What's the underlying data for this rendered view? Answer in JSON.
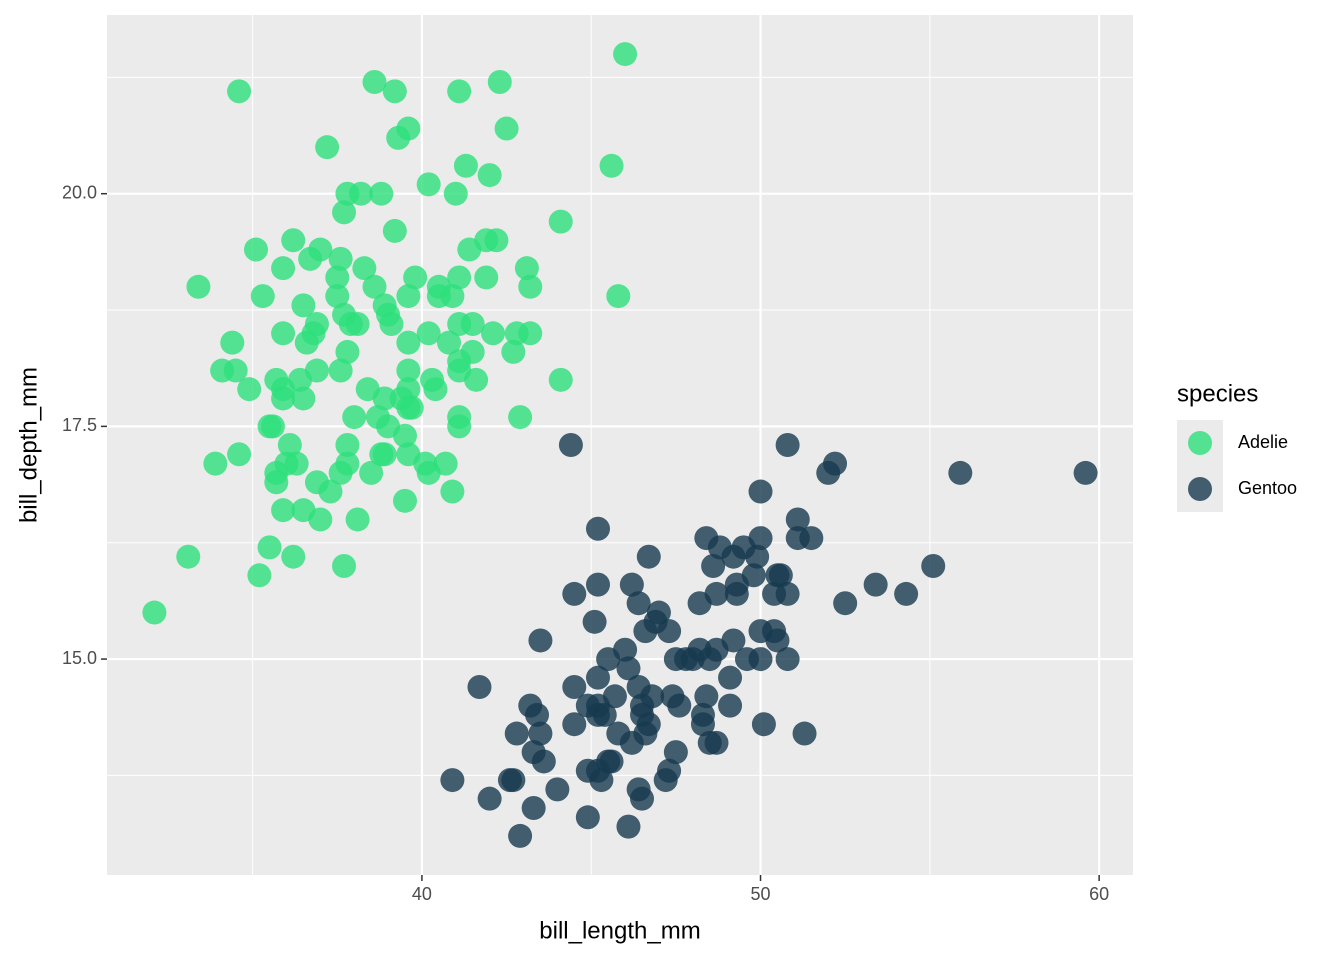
{
  "chart_data": {
    "type": "scatter",
    "x_label": "bill_length_mm",
    "y_label": "bill_depth_mm",
    "legend_title": "species",
    "xlim": [
      30.7,
      61.0
    ],
    "ylim": [
      12.68,
      21.92
    ],
    "xticks": [
      40,
      50,
      60
    ],
    "yticks": [
      {
        "value": 15,
        "label": "15.0"
      },
      {
        "value": 17.5,
        "label": "17.5"
      },
      {
        "value": 20,
        "label": "20.0"
      }
    ],
    "grid": true,
    "legend": "right",
    "series": [
      {
        "name": "Adelie",
        "color": "#2de07a",
        "x": [
          46.0,
          34.6,
          38.6,
          39.2,
          41.1,
          42.3,
          39.6,
          39.3,
          42.5,
          37.2,
          41.3,
          45.6,
          42.0,
          40.2,
          37.8,
          38.2,
          38.8,
          41.0,
          37.7,
          44.1,
          39.2,
          35.1,
          36.2,
          37.0,
          41.9,
          42.2,
          41.4,
          35.9,
          36.7,
          37.6,
          38.3,
          43.1,
          39.8,
          41.1,
          37.5,
          41.9,
          33.4,
          38.6,
          40.5,
          43.2,
          45.8,
          35.3,
          37.5,
          39.6,
          40.5,
          40.9,
          36.5,
          38.9,
          39.0,
          37.7,
          41.1,
          41.5,
          37.9,
          38.1,
          36.9,
          39.1,
          35.9,
          36.8,
          42.1,
          42.8,
          43.2,
          40.2,
          34.4,
          39.6,
          40.8,
          36.6,
          41.5,
          42.7,
          37.8,
          41.1,
          34.1,
          34.5,
          36.9,
          37.6,
          39.6,
          41.1,
          35.7,
          36.4,
          40.3,
          41.6,
          44.1,
          34.9,
          35.9,
          38.4,
          40.4,
          39.6,
          35.9,
          36.5,
          38.9,
          39.4,
          39.6,
          39.7,
          38.0,
          38.7,
          41.1,
          42.9,
          35.5,
          35.6,
          39.0,
          41.1,
          39.5,
          36.1,
          37.8,
          34.6,
          38.8,
          38.9,
          39.6,
          33.9,
          36.0,
          36.3,
          37.8,
          40.1,
          40.7,
          35.7,
          37.6,
          38.5,
          40.2,
          35.7,
          36.9,
          37.3,
          40.9,
          39.5,
          35.9,
          36.5,
          37.0,
          38.1,
          35.5,
          33.1,
          36.2,
          37.7,
          35.2,
          32.1
        ],
        "values": [
          21.5,
          21.1,
          21.2,
          21.1,
          21.1,
          21.2,
          20.7,
          20.6,
          20.7,
          20.5,
          20.3,
          20.3,
          20.2,
          20.1,
          20.0,
          20.0,
          20.0,
          20.0,
          19.8,
          19.7,
          19.6,
          19.4,
          19.5,
          19.4,
          19.5,
          19.5,
          19.4,
          19.2,
          19.3,
          19.3,
          19.2,
          19.2,
          19.1,
          19.1,
          19.1,
          19.1,
          19.0,
          19.0,
          19.0,
          19.0,
          18.9,
          18.9,
          18.9,
          18.9,
          18.9,
          18.9,
          18.8,
          18.8,
          18.7,
          18.7,
          18.6,
          18.6,
          18.6,
          18.6,
          18.6,
          18.6,
          18.5,
          18.5,
          18.5,
          18.5,
          18.5,
          18.5,
          18.4,
          18.4,
          18.4,
          18.4,
          18.3,
          18.3,
          18.3,
          18.2,
          18.1,
          18.1,
          18.1,
          18.1,
          18.1,
          18.1,
          18.0,
          18.0,
          18.0,
          18.0,
          18.0,
          17.9,
          17.9,
          17.9,
          17.9,
          17.9,
          17.8,
          17.8,
          17.8,
          17.8,
          17.7,
          17.7,
          17.6,
          17.6,
          17.6,
          17.6,
          17.5,
          17.5,
          17.5,
          17.5,
          17.4,
          17.3,
          17.3,
          17.2,
          17.2,
          17.2,
          17.2,
          17.1,
          17.1,
          17.1,
          17.1,
          17.1,
          17.1,
          17.0,
          17.0,
          17.0,
          17.0,
          16.9,
          16.9,
          16.8,
          16.8,
          16.7,
          16.6,
          16.6,
          16.5,
          16.5,
          16.2,
          16.1,
          16.1,
          16.0,
          15.9,
          15.5
        ]
      },
      {
        "name": "Gentoo",
        "color": "#173a4f",
        "x": [
          44.4,
          50.8,
          52.2,
          52.0,
          55.9,
          59.6,
          50.0,
          45.2,
          51.1,
          51.1,
          51.5,
          48.4,
          50.0,
          48.8,
          49.5,
          46.7,
          49.2,
          49.9,
          48.6,
          55.1,
          49.8,
          50.5,
          50.6,
          46.2,
          45.2,
          49.3,
          53.4,
          44.5,
          48.7,
          49.3,
          50.4,
          50.8,
          54.3,
          46.4,
          48.2,
          52.5,
          45.1,
          46.9,
          47.0,
          46.6,
          47.3,
          50.0,
          50.4,
          43.5,
          49.2,
          50.5,
          46.0,
          48.2,
          48.7,
          45.5,
          47.5,
          47.8,
          48.0,
          48.5,
          49.6,
          50.0,
          50.8,
          46.1,
          49.1,
          45.2,
          41.7,
          44.5,
          46.4,
          45.7,
          46.8,
          47.4,
          48.4,
          44.9,
          45.2,
          43.2,
          46.5,
          47.6,
          49.1,
          43.4,
          45.4,
          46.5,
          45.2,
          46.7,
          44.5,
          48.3,
          48.3,
          50.1,
          42.8,
          43.5,
          51.3,
          45.8,
          46.6,
          46.2,
          48.5,
          48.7,
          43.3,
          45.6,
          47.5,
          43.6,
          45.5,
          44.9,
          47.3,
          45.2,
          40.9,
          42.6,
          42.7,
          45.3,
          47.2,
          44.0,
          46.4,
          42.0,
          46.5,
          43.3,
          44.9,
          46.1,
          42.9
        ],
        "values": [
          17.3,
          17.3,
          17.1,
          17.0,
          17.0,
          17.0,
          16.8,
          16.4,
          16.5,
          16.3,
          16.3,
          16.3,
          16.3,
          16.2,
          16.2,
          16.1,
          16.1,
          16.1,
          16.0,
          16.0,
          15.9,
          15.9,
          15.9,
          15.8,
          15.8,
          15.8,
          15.8,
          15.7,
          15.7,
          15.7,
          15.7,
          15.7,
          15.7,
          15.6,
          15.6,
          15.6,
          15.4,
          15.4,
          15.5,
          15.3,
          15.3,
          15.3,
          15.3,
          15.2,
          15.2,
          15.2,
          15.1,
          15.1,
          15.1,
          15.0,
          15.0,
          15.0,
          15.0,
          15.0,
          15.0,
          15.0,
          15.0,
          14.9,
          14.8,
          14.8,
          14.7,
          14.7,
          14.7,
          14.6,
          14.6,
          14.6,
          14.6,
          14.5,
          14.5,
          14.5,
          14.5,
          14.5,
          14.5,
          14.4,
          14.4,
          14.4,
          14.4,
          14.3,
          14.3,
          14.4,
          14.3,
          14.3,
          14.2,
          14.2,
          14.2,
          14.2,
          14.2,
          14.1,
          14.1,
          14.1,
          14.0,
          13.9,
          14.0,
          13.9,
          13.9,
          13.8,
          13.8,
          13.8,
          13.7,
          13.7,
          13.7,
          13.7,
          13.7,
          13.6,
          13.6,
          13.5,
          13.5,
          13.4,
          13.3,
          13.2,
          13.1
        ]
      }
    ]
  }
}
